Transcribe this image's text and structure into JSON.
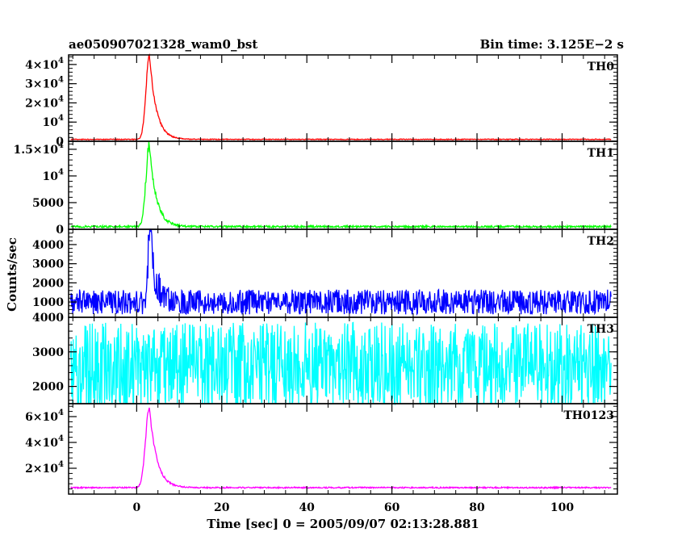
{
  "header": {
    "left_title": "ae050907021328_wam0_bst",
    "right_title": "Bin time: 3.125E−2 s"
  },
  "chart_data": {
    "type": "line",
    "title": "ae050907021328_wam0_bst",
    "subtitle": "Bin time: 3.125E−2 s",
    "xlabel": "Time [sec] 0 = 2005/09/07 02:13:28.881",
    "ylabel": "Counts/sec",
    "xlim": [
      -16,
      113
    ],
    "data_range": [
      -15.5,
      111.5
    ],
    "xticks": [
      0,
      20,
      40,
      60,
      80,
      100
    ],
    "xtick_labels": [
      "0",
      "20",
      "40",
      "60",
      "80",
      "100"
    ],
    "grid": false,
    "legend": "none",
    "panels": [
      {
        "name": "TH0",
        "color": "#ff0000",
        "ylim": [
          0,
          45000
        ],
        "yticks": [
          0,
          10000,
          20000,
          30000,
          40000
        ],
        "ytick_labels": [
          {
            "base": "0",
            "exp": ""
          },
          {
            "base": "10",
            "exp": "4"
          },
          {
            "base": "2×10",
            "exp": "4"
          },
          {
            "base": "3×10",
            "exp": "4"
          },
          {
            "base": "4×10",
            "exp": "4"
          }
        ],
        "baseline": 1000,
        "noise": 200,
        "peak_time": 3.0,
        "peak_value": 45000,
        "peak_rise": 0.8,
        "peak_decay": 1.6
      },
      {
        "name": "TH1",
        "color": "#00ff00",
        "ylim": [
          0,
          16500
        ],
        "yticks": [
          0,
          5000,
          10000,
          15000
        ],
        "ytick_labels": [
          {
            "base": "0",
            "exp": ""
          },
          {
            "base": "5000",
            "exp": ""
          },
          {
            "base": "10",
            "exp": "4"
          },
          {
            "base": "1.5×10",
            "exp": "4"
          }
        ],
        "baseline": 500,
        "noise": 180,
        "peak_time": 3.0,
        "peak_value": 16000,
        "peak_rise": 0.8,
        "peak_decay": 1.6
      },
      {
        "name": "TH2",
        "color": "#0000ff",
        "ylim": [
          200,
          4800
        ],
        "yticks": [
          1000,
          2000,
          3000,
          4000
        ],
        "ytick_labels": [
          {
            "base": "1000",
            "exp": ""
          },
          {
            "base": "2000",
            "exp": ""
          },
          {
            "base": "3000",
            "exp": ""
          },
          {
            "base": "4000",
            "exp": ""
          }
        ],
        "baseline": 1000,
        "noise": 650,
        "peak_time": 3.2,
        "peak_value": 4700,
        "peak_rise": 0.5,
        "peak_decay": 1.2
      },
      {
        "name": "TH3",
        "color": "#00ffff",
        "ylim": [
          1500,
          4000
        ],
        "yticks": [
          2000,
          3000,
          4000
        ],
        "ytick_labels": [
          {
            "base": "2000",
            "exp": ""
          },
          {
            "base": "3000",
            "exp": ""
          },
          {
            "base": "4000",
            "exp": ""
          }
        ],
        "baseline": 2550,
        "noise": 1300,
        "peak_time": 3.0,
        "peak_value": 0,
        "peak_rise": 1.0,
        "peak_decay": 1.0
      },
      {
        "name": "TH0123",
        "color": "#ff00ff",
        "ylim": [
          0,
          70000
        ],
        "yticks": [
          20000,
          40000,
          60000
        ],
        "ytick_labels": [
          {
            "base": "2×10",
            "exp": "4"
          },
          {
            "base": "4×10",
            "exp": "4"
          },
          {
            "base": "6×10",
            "exp": "4"
          }
        ],
        "baseline": 5000,
        "noise": 500,
        "peak_time": 3.0,
        "peak_value": 68000,
        "peak_rise": 0.9,
        "peak_decay": 1.7
      }
    ]
  }
}
